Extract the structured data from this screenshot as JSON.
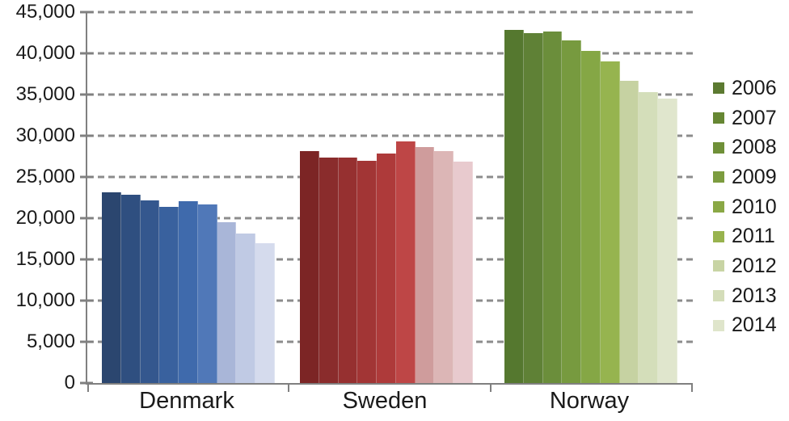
{
  "chart_data": {
    "type": "bar",
    "title": "",
    "xlabel": "",
    "ylabel": "",
    "categories": [
      "Denmark",
      "Sweden",
      "Norway"
    ],
    "legend_labels": [
      "2006",
      "2007",
      "2008",
      "2009",
      "2010",
      "2011",
      "2012",
      "2013",
      "2014"
    ],
    "legend_position": "right",
    "grid": "dashed-horizontal",
    "ylim": [
      0,
      45000
    ],
    "ytick_step": 5000,
    "ytick_labels": [
      "0",
      "5,000",
      "10,000",
      "15,000",
      "20,000",
      "25,000",
      "30,000",
      "35,000",
      "40,000",
      "45,000"
    ],
    "series": [
      {
        "name": "Denmark",
        "values": [
          23100,
          22850,
          22200,
          21400,
          22050,
          21650,
          19500,
          18150,
          16950
        ],
        "colors": [
          "#2B466F",
          "#2F4F80",
          "#34578E",
          "#39619E",
          "#3F6AAC",
          "#5078B8",
          "#A9B6D8",
          "#C0CAE4",
          "#D5DBED"
        ]
      },
      {
        "name": "Sweden",
        "values": [
          28100,
          27400,
          27350,
          27000,
          27800,
          29300,
          28600,
          28100,
          26900
        ],
        "colors": [
          "#7C2525",
          "#8A2C2C",
          "#963030",
          "#A23535",
          "#AE3A3A",
          "#BE4646",
          "#CF9C9C",
          "#DCB6B6",
          "#E8CACE"
        ]
      },
      {
        "name": "Norway",
        "values": [
          42800,
          42450,
          42600,
          41600,
          40300,
          39050,
          36650,
          35300,
          34500
        ],
        "colors": [
          "#55782F",
          "#5F8136",
          "#6B8E3B",
          "#779A3F",
          "#85A745",
          "#96B44F",
          "#C6D2A2",
          "#D4DEBA",
          "#E0E6CD"
        ]
      }
    ],
    "legend_colors": [
      "#5C7A31",
      "#668733",
      "#6F9038",
      "#7C9C3F",
      "#8AA845",
      "#98B34E",
      "#C8D4A4",
      "#D4DDB9",
      "#DFE5CB"
    ]
  },
  "colors": {
    "axis": "#808080",
    "gridline": "#8C8C8C",
    "text": "#1A1A1A",
    "background": "#FFFFFF"
  }
}
